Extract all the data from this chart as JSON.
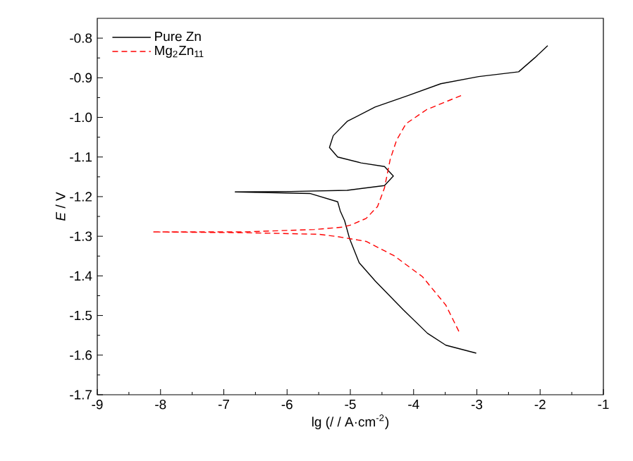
{
  "chart_data": {
    "type": "line",
    "xlabel": "lg (/ / A·cm$^{-2}$)",
    "ylabel": "*E* / V",
    "xlim": [
      -9,
      -1
    ],
    "ylim": [
      -1.7,
      -0.75
    ],
    "xticks": [
      -9,
      -8,
      -7,
      -6,
      -5,
      -4,
      -3,
      -2,
      -1
    ],
    "yticks": [
      -1.7,
      -1.6,
      -1.5,
      -1.4,
      -1.3,
      -1.2,
      -1.1,
      {
        "value": -1.0,
        "label": "-1.0"
      },
      -0.9,
      -0.8
    ],
    "legend": "top left",
    "series": [
      {
        "name": "Pure Zn",
        "color": "#000000",
        "line_style": "solid",
        "x": [
          -3.01,
          -3.49,
          -3.78,
          -4.16,
          -4.6,
          -4.86,
          -5.01,
          -5.09,
          -5.16,
          -5.2,
          -5.64,
          -6.82,
          -5.94,
          -5.05,
          -4.46,
          -4.32,
          -4.46,
          -4.83,
          -5.2,
          -5.33,
          -5.27,
          -5.05,
          -4.61,
          -4.09,
          -3.57,
          -2.97,
          -2.34,
          -2.08,
          -1.88
        ],
        "values": [
          -1.595,
          -1.575,
          -1.545,
          -1.486,
          -1.414,
          -1.367,
          -1.307,
          -1.261,
          -1.236,
          -1.213,
          -1.192,
          -1.188,
          -1.187,
          -1.184,
          -1.172,
          -1.148,
          -1.124,
          -1.115,
          -1.1,
          -1.076,
          -1.046,
          -1.01,
          -0.974,
          -0.945,
          -0.915,
          -0.897,
          -0.885,
          -0.849,
          -0.819
        ]
      },
      {
        "name": "Mg$_{2}$Zn$_{11}$",
        "color": "#ff0000",
        "line_style": "dashed",
        "x": [
          -3.25,
          -3.79,
          -4.12,
          -4.27,
          -4.37,
          -4.46,
          -4.57,
          -4.75,
          -4.98,
          -5.12,
          -5.57,
          -6.68,
          -8.13,
          -6.68,
          -5.5,
          -5.2,
          -4.75,
          -4.31,
          -3.86,
          -3.49,
          -3.26
        ],
        "values": [
          -0.945,
          -0.98,
          -1.016,
          -1.058,
          -1.106,
          -1.178,
          -1.225,
          -1.255,
          -1.271,
          -1.277,
          -1.283,
          -1.289,
          -1.289,
          -1.291,
          -1.295,
          -1.301,
          -1.313,
          -1.349,
          -1.402,
          -1.474,
          -1.548
        ]
      }
    ]
  }
}
